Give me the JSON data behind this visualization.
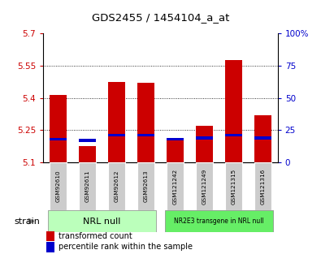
{
  "title": "GDS2455 / 1454104_a_at",
  "samples": [
    "GSM92610",
    "GSM92611",
    "GSM92612",
    "GSM92613",
    "GSM121242",
    "GSM121249",
    "GSM121315",
    "GSM121316"
  ],
  "transformed_counts": [
    5.415,
    5.175,
    5.475,
    5.47,
    5.215,
    5.27,
    5.575,
    5.32
  ],
  "percentile_ranks": [
    18,
    17,
    21,
    21,
    18,
    19,
    21,
    19
  ],
  "ymin": 5.1,
  "ymax": 5.7,
  "yticks": [
    5.1,
    5.25,
    5.4,
    5.55,
    5.7
  ],
  "ytick_labels": [
    "5.1",
    "5.25",
    "5.4",
    "5.55",
    "5.7"
  ],
  "right_yticks": [
    0,
    25,
    50,
    75,
    100
  ],
  "right_ytick_labels": [
    "0",
    "25",
    "50",
    "75",
    "100%"
  ],
  "bar_color_red": "#cc0000",
  "bar_color_blue": "#0000cc",
  "group1_label": "NRL null",
  "group2_label": "NR2E3 transgene in NRL null",
  "group1_indices": [
    0,
    1,
    2,
    3
  ],
  "group2_indices": [
    4,
    5,
    6,
    7
  ],
  "group1_color": "#bbffbb",
  "group2_color": "#66ee66",
  "strain_label": "strain",
  "legend1": "transformed count",
  "legend2": "percentile rank within the sample",
  "bar_width": 0.6,
  "tick_color_left": "#cc0000",
  "tick_color_right": "#0000cc",
  "bg_xtick": "#cccccc"
}
